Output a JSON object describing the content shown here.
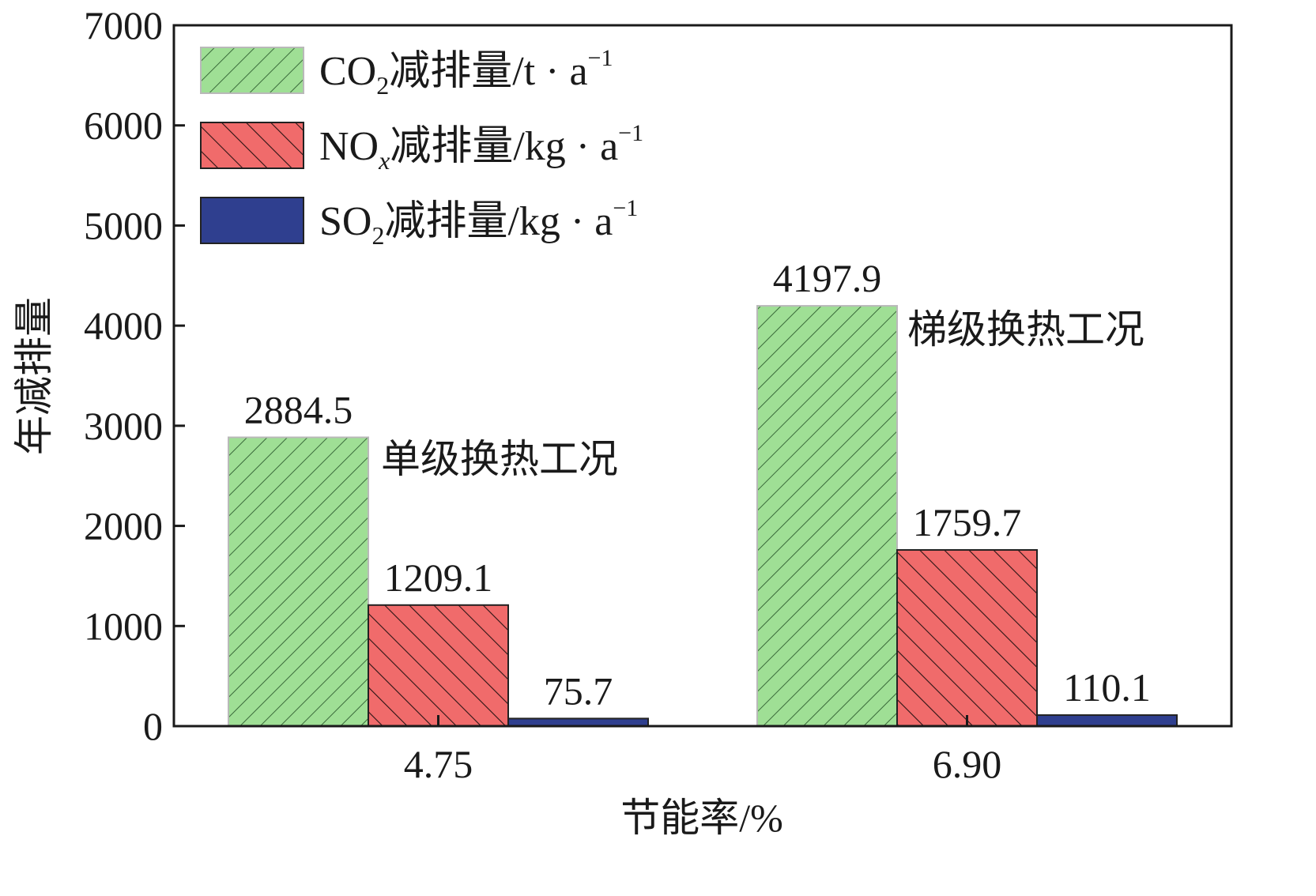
{
  "chart_data": {
    "type": "bar",
    "xlabel": "节能率/%",
    "ylabel": "年减排量",
    "ylim": [
      0,
      7000
    ],
    "yticks": [
      "0",
      "1000",
      "2000",
      "3000",
      "4000",
      "5000",
      "6000",
      "7000"
    ],
    "categories": [
      "4.75",
      "6.90"
    ],
    "series": [
      {
        "name": "CO2减排量/t · a−1",
        "legend_main": "CO",
        "legend_sub": "2",
        "legend_rest": "减排量/t · a",
        "legend_sup": "−1",
        "values": [
          2884.5,
          4197.9
        ],
        "labels": [
          "2884.5",
          "4197.9"
        ],
        "fill": "#9fdf95",
        "hatch": "#3a6a3a",
        "pattern": "forward"
      },
      {
        "name": "NOx减排量/kg · a−1",
        "legend_main": "NO",
        "legend_sub": "x",
        "legend_rest": "减排量/kg · a",
        "legend_sup": "−1",
        "values": [
          1209.1,
          1759.7
        ],
        "labels": [
          "1209.1",
          "1759.7"
        ],
        "fill": "#f06b6b",
        "hatch": "#2a1414",
        "pattern": "backward"
      },
      {
        "name": "SO2减排量/kg · a−1",
        "legend_main": "SO",
        "legend_sub": "2",
        "legend_rest": "减排量/kg · a",
        "legend_sup": "−1",
        "values": [
          75.7,
          110.1
        ],
        "labels": [
          "75.7",
          "110.1"
        ],
        "fill": "#2f3f8f",
        "hatch": "#2f3f8f",
        "pattern": "solid"
      }
    ],
    "annotations": [
      "单级换热工况",
      "梯级换热工况"
    ],
    "legend_position": "top-left",
    "grid": false
  }
}
